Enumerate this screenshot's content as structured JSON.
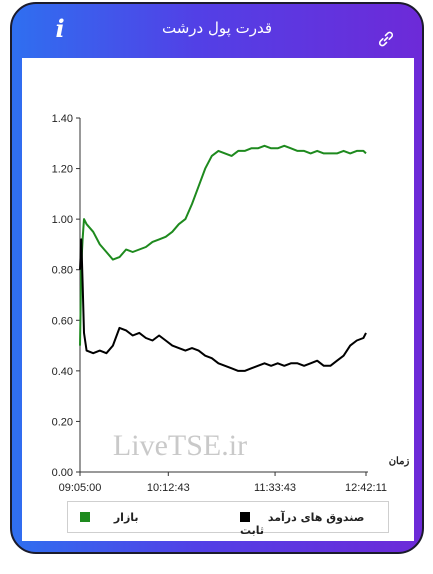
{
  "header": {
    "title": "قدرت پول درشت",
    "info_label": "i",
    "info_icon": "info-icon",
    "link_icon": "link-icon"
  },
  "watermark": "LiveTSE.ir",
  "colors": {
    "bazar": "#1e8a1e",
    "sandogh": "#000000"
  },
  "chart_data": {
    "type": "line",
    "xlabel": "زمان",
    "ylabel": "",
    "ylim": [
      0,
      1.4
    ],
    "yticks": [
      "0.00",
      "0.20",
      "0.40",
      "0.60",
      "0.80",
      "1.00",
      "1.20",
      "1.40"
    ],
    "xticks": [
      "09:05:00",
      "10:12:43",
      "11:33:43",
      "12:42:11"
    ],
    "grid": false,
    "legend_position": "bottom",
    "series": [
      {
        "name": "بازار",
        "x": [
          "09:05",
          "09:06",
          "09:07",
          "09:08",
          "09:10",
          "09:15",
          "09:20",
          "09:25",
          "09:30",
          "09:35",
          "09:40",
          "09:45",
          "09:50",
          "09:55",
          "10:00",
          "10:05",
          "10:10",
          "10:15",
          "10:20",
          "10:25",
          "10:30",
          "10:35",
          "10:40",
          "10:45",
          "10:50",
          "10:55",
          "11:00",
          "11:05",
          "11:10",
          "11:15",
          "11:20",
          "11:25",
          "11:30",
          "11:35",
          "11:40",
          "11:45",
          "11:50",
          "11:55",
          "12:00",
          "12:05",
          "12:10",
          "12:15",
          "12:20",
          "12:25",
          "12:30",
          "12:35",
          "12:40",
          "12:42"
        ],
        "values": [
          0.5,
          0.82,
          0.92,
          1.0,
          0.98,
          0.95,
          0.9,
          0.87,
          0.84,
          0.85,
          0.88,
          0.87,
          0.88,
          0.89,
          0.91,
          0.92,
          0.93,
          0.95,
          0.98,
          1.0,
          1.06,
          1.13,
          1.2,
          1.25,
          1.27,
          1.26,
          1.25,
          1.27,
          1.27,
          1.28,
          1.28,
          1.29,
          1.28,
          1.28,
          1.29,
          1.28,
          1.27,
          1.27,
          1.26,
          1.27,
          1.26,
          1.26,
          1.26,
          1.27,
          1.26,
          1.27,
          1.27,
          1.26
        ]
      },
      {
        "name": "صندوق های درآمد ثابت",
        "x": [
          "09:05",
          "09:06",
          "09:07",
          "09:08",
          "09:10",
          "09:15",
          "09:20",
          "09:25",
          "09:30",
          "09:35",
          "09:40",
          "09:45",
          "09:50",
          "09:55",
          "10:00",
          "10:05",
          "10:10",
          "10:15",
          "10:20",
          "10:25",
          "10:30",
          "10:35",
          "10:40",
          "10:45",
          "10:50",
          "10:55",
          "11:00",
          "11:05",
          "11:10",
          "11:15",
          "11:20",
          "11:25",
          "11:30",
          "11:35",
          "11:40",
          "11:45",
          "11:50",
          "11:55",
          "12:00",
          "12:05",
          "12:10",
          "12:15",
          "12:20",
          "12:25",
          "12:30",
          "12:35",
          "12:40",
          "12:42"
        ],
        "values": [
          0.8,
          0.92,
          0.75,
          0.55,
          0.48,
          0.47,
          0.48,
          0.47,
          0.5,
          0.57,
          0.56,
          0.54,
          0.55,
          0.53,
          0.52,
          0.54,
          0.52,
          0.5,
          0.49,
          0.48,
          0.49,
          0.48,
          0.46,
          0.45,
          0.43,
          0.42,
          0.41,
          0.4,
          0.4,
          0.41,
          0.42,
          0.43,
          0.42,
          0.43,
          0.42,
          0.43,
          0.43,
          0.42,
          0.43,
          0.44,
          0.42,
          0.42,
          0.44,
          0.46,
          0.5,
          0.52,
          0.53,
          0.55
        ]
      }
    ]
  }
}
